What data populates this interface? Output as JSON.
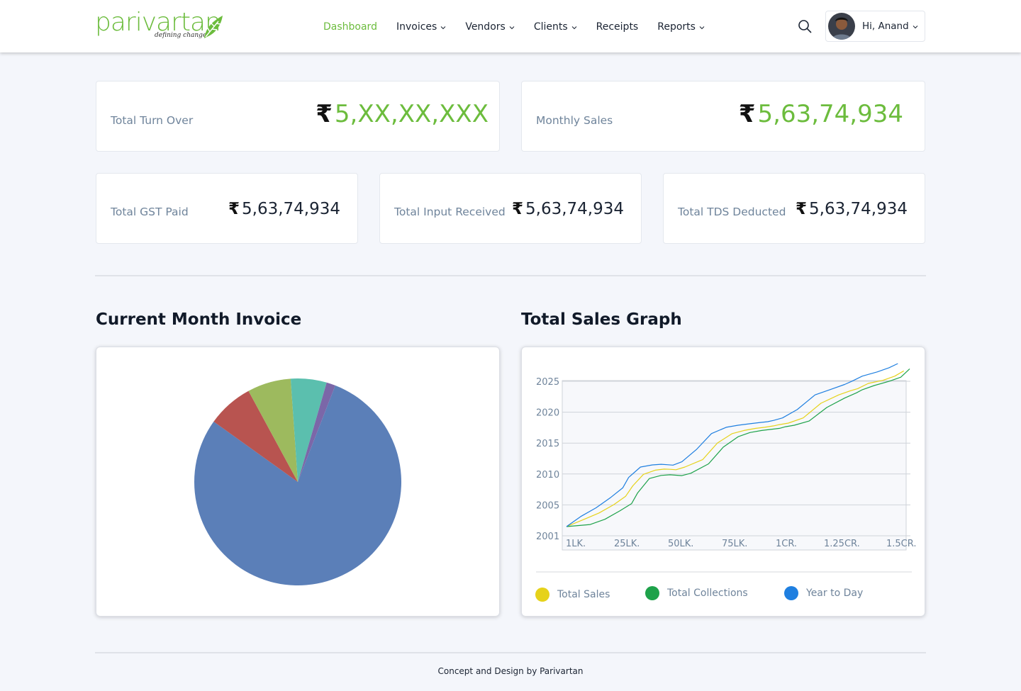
{
  "brand": {
    "name": "parivartan",
    "tagline": "defining change"
  },
  "nav": [
    {
      "label": "Dashboard",
      "active": true,
      "dropdown": false
    },
    {
      "label": "Invoices",
      "active": false,
      "dropdown": true
    },
    {
      "label": "Vendors",
      "active": false,
      "dropdown": true
    },
    {
      "label": "Clients",
      "active": false,
      "dropdown": true
    },
    {
      "label": "Receipts",
      "active": false,
      "dropdown": false
    },
    {
      "label": "Reports",
      "active": false,
      "dropdown": true
    }
  ],
  "user": {
    "greeting": "Hi, Anand"
  },
  "stats": {
    "turnover": {
      "label": "Total Turn Over",
      "currency": "₹",
      "value": "5,XX,XX,XXX"
    },
    "monthly_sales": {
      "label": "Monthly Sales",
      "currency": "₹",
      "value": "5,63,74,934"
    },
    "gst": {
      "label": "Total GST Paid",
      "currency": "₹",
      "value": "5,63,74,934"
    },
    "input": {
      "label": "Total Input Received",
      "currency": "₹",
      "value": "5,63,74,934"
    },
    "tds": {
      "label": "Total TDS Deducted",
      "currency": "₹",
      "value": "5,63,74,934"
    }
  },
  "sections": {
    "invoice_title": "Current Month Invoice",
    "sales_title": "Total Sales Graph"
  },
  "colors": {
    "accent": "#6cbc3d",
    "text": "#1b2433",
    "muted": "#6f849b"
  },
  "chart_data": [
    {
      "type": "pie",
      "title": "",
      "slices": [
        {
          "value": 79.0,
          "color": "#5b7fb8"
        },
        {
          "value": 7.2,
          "color": "#b85450"
        },
        {
          "value": 6.8,
          "color": "#9dba5e"
        },
        {
          "value": 5.6,
          "color": "#5bbfae"
        },
        {
          "value": 1.4,
          "color": "#7b67a8"
        }
      ]
    },
    {
      "type": "line",
      "title": "",
      "x_ticks": [
        "1LK.",
        "25LK.",
        "50LK.",
        "75LK.",
        "1CR.",
        "1.25CR.",
        "1.5CR."
      ],
      "y_ticks": [
        "2001",
        "2005",
        "2010",
        "2015",
        "2020",
        "2025"
      ],
      "grid": true,
      "legend_position": "bottom",
      "series": [
        {
          "name": "Total Sales",
          "color": "#e6d21a",
          "x": [
            0,
            0.3,
            0.55,
            0.8,
            1.0,
            1.12,
            1.3,
            1.5,
            1.65,
            1.75,
            1.85,
            2.0,
            2.3,
            2.55,
            2.8,
            3.0,
            3.2,
            3.35,
            3.5,
            3.6,
            3.75,
            4.0,
            4.3,
            4.6,
            4.8,
            4.92,
            5.1,
            5.35,
            5.55,
            5.7
          ],
          "y": [
            0,
            0.35,
            0.65,
            1.05,
            1.45,
            1.95,
            2.5,
            2.7,
            2.75,
            2.74,
            2.72,
            2.85,
            3.2,
            4.0,
            4.45,
            4.6,
            4.7,
            4.75,
            4.82,
            4.88,
            4.95,
            5.2,
            5.9,
            6.3,
            6.5,
            6.6,
            6.85,
            7.0,
            7.2,
            7.45
          ]
        },
        {
          "name": "Total Collections",
          "color": "#1ea24a",
          "x": [
            0,
            0.4,
            0.65,
            0.9,
            1.1,
            1.2,
            1.4,
            1.6,
            1.75,
            1.85,
            1.95,
            2.1,
            2.4,
            2.65,
            2.9,
            3.1,
            3.3,
            3.45,
            3.6,
            3.7,
            3.85,
            4.1,
            4.4,
            4.7,
            4.9,
            5.0,
            5.2,
            5.45,
            5.65,
            5.8
          ],
          "y": [
            0,
            0.1,
            0.35,
            0.75,
            1.1,
            1.6,
            2.3,
            2.45,
            2.48,
            2.46,
            2.44,
            2.55,
            3.0,
            3.8,
            4.3,
            4.5,
            4.6,
            4.65,
            4.7,
            4.78,
            4.85,
            5.05,
            5.7,
            6.15,
            6.4,
            6.55,
            6.75,
            6.95,
            7.15,
            7.55
          ]
        },
        {
          "name": "Year to Day",
          "color": "#1f7fe0",
          "x": [
            0,
            0.25,
            0.5,
            0.75,
            0.95,
            1.05,
            1.25,
            1.45,
            1.6,
            1.7,
            1.8,
            1.95,
            2.2,
            2.45,
            2.7,
            2.9,
            3.1,
            3.25,
            3.4,
            3.5,
            3.65,
            3.9,
            4.2,
            4.5,
            4.7,
            4.82,
            5.0,
            5.25,
            5.45,
            5.6
          ],
          "y": [
            0,
            0.5,
            0.9,
            1.4,
            1.85,
            2.35,
            2.85,
            2.95,
            2.98,
            2.96,
            2.94,
            3.1,
            3.7,
            4.45,
            4.75,
            4.85,
            4.92,
            4.97,
            5.02,
            5.08,
            5.2,
            5.6,
            6.3,
            6.6,
            6.8,
            6.95,
            7.2,
            7.4,
            7.6,
            7.8
          ]
        }
      ]
    }
  ],
  "footer": {
    "text": "Concept and Design by Parivartan"
  }
}
